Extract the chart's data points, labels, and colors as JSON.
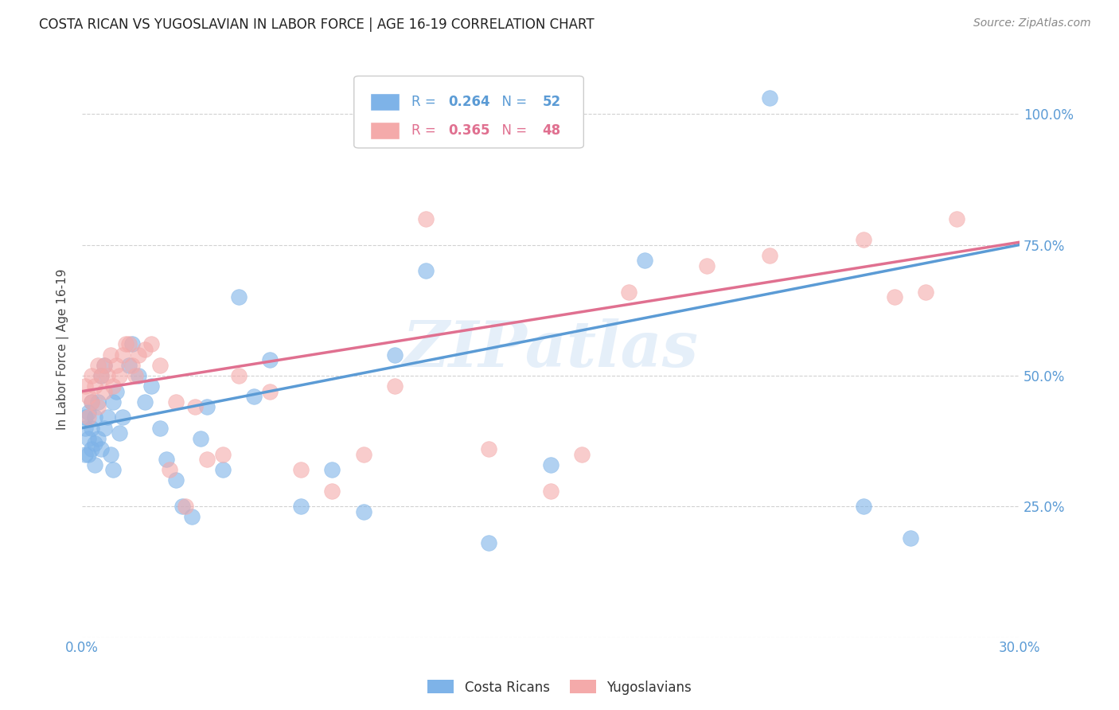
{
  "title": "COSTA RICAN VS YUGOSLAVIAN IN LABOR FORCE | AGE 16-19 CORRELATION CHART",
  "source": "Source: ZipAtlas.com",
  "ylabel": "In Labor Force | Age 16-19",
  "xmin": 0.0,
  "xmax": 0.3,
  "ymin": 0.0,
  "ymax": 1.1,
  "blue_R": 0.264,
  "blue_N": 52,
  "pink_R": 0.365,
  "pink_N": 48,
  "blue_color": "#7EB3E8",
  "pink_color": "#F4AAAA",
  "blue_line_color": "#5B9BD5",
  "pink_line_color": "#E07090",
  "tick_color": "#5B9BD5",
  "watermark": "ZIPatlas",
  "legend_labels": [
    "Costa Ricans",
    "Yugoslavians"
  ],
  "blue_scatter_x": [
    0.001,
    0.001,
    0.001,
    0.002,
    0.002,
    0.002,
    0.003,
    0.003,
    0.003,
    0.004,
    0.004,
    0.004,
    0.005,
    0.005,
    0.006,
    0.006,
    0.007,
    0.007,
    0.008,
    0.009,
    0.01,
    0.01,
    0.011,
    0.012,
    0.013,
    0.015,
    0.016,
    0.018,
    0.02,
    0.022,
    0.025,
    0.027,
    0.03,
    0.032,
    0.035,
    0.038,
    0.04,
    0.045,
    0.05,
    0.055,
    0.06,
    0.07,
    0.08,
    0.09,
    0.1,
    0.11,
    0.13,
    0.15,
    0.18,
    0.22,
    0.25,
    0.265
  ],
  "blue_scatter_y": [
    0.42,
    0.4,
    0.35,
    0.43,
    0.38,
    0.35,
    0.45,
    0.4,
    0.36,
    0.42,
    0.37,
    0.33,
    0.45,
    0.38,
    0.5,
    0.36,
    0.52,
    0.4,
    0.42,
    0.35,
    0.45,
    0.32,
    0.47,
    0.39,
    0.42,
    0.52,
    0.56,
    0.5,
    0.45,
    0.48,
    0.4,
    0.34,
    0.3,
    0.25,
    0.23,
    0.38,
    0.44,
    0.32,
    0.65,
    0.46,
    0.53,
    0.25,
    0.32,
    0.24,
    0.54,
    0.7,
    0.18,
    0.33,
    0.72,
    1.03,
    0.25,
    0.19
  ],
  "pink_scatter_x": [
    0.001,
    0.002,
    0.002,
    0.003,
    0.003,
    0.004,
    0.005,
    0.005,
    0.006,
    0.007,
    0.007,
    0.008,
    0.009,
    0.01,
    0.011,
    0.012,
    0.013,
    0.014,
    0.015,
    0.016,
    0.017,
    0.018,
    0.02,
    0.022,
    0.025,
    0.028,
    0.03,
    0.033,
    0.036,
    0.04,
    0.045,
    0.05,
    0.06,
    0.07,
    0.08,
    0.09,
    0.1,
    0.11,
    0.13,
    0.15,
    0.16,
    0.175,
    0.2,
    0.22,
    0.25,
    0.26,
    0.27,
    0.28
  ],
  "pink_scatter_y": [
    0.48,
    0.46,
    0.42,
    0.5,
    0.45,
    0.48,
    0.52,
    0.44,
    0.5,
    0.52,
    0.47,
    0.5,
    0.54,
    0.48,
    0.52,
    0.5,
    0.54,
    0.56,
    0.56,
    0.52,
    0.5,
    0.54,
    0.55,
    0.56,
    0.52,
    0.32,
    0.45,
    0.25,
    0.44,
    0.34,
    0.35,
    0.5,
    0.47,
    0.32,
    0.28,
    0.35,
    0.48,
    0.8,
    0.36,
    0.28,
    0.35,
    0.66,
    0.71,
    0.73,
    0.76,
    0.65,
    0.66,
    0.8
  ]
}
